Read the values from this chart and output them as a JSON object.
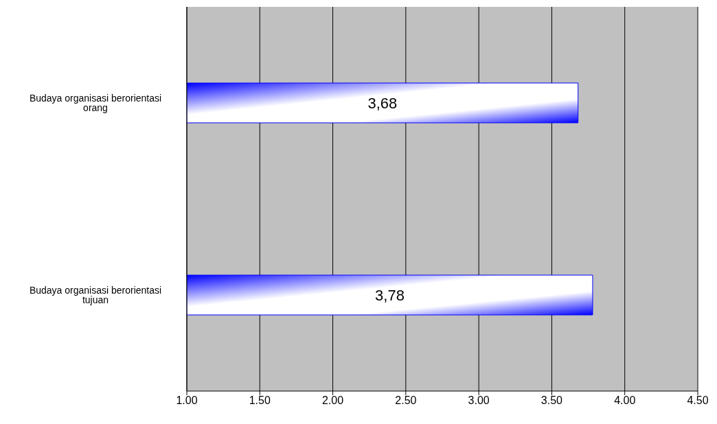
{
  "chart_data": {
    "type": "bar",
    "orientation": "horizontal",
    "categories": [
      "Budaya organisasi berorientasi orang",
      "Budaya organisasi berorientasi tujuan"
    ],
    "values": [
      3.68,
      3.78
    ],
    "value_labels": [
      "3,68",
      "3,78"
    ],
    "color": "#0000ff",
    "xlim": [
      1,
      4.5
    ],
    "xticks": [
      {
        "value": 1,
        "label": "1.00"
      },
      {
        "value": 1.5,
        "label": "1.50"
      },
      {
        "value": 2,
        "label": "2.00"
      },
      {
        "value": 2.5,
        "label": "2.50"
      },
      {
        "value": 3,
        "label": "3.00"
      },
      {
        "value": 3.5,
        "label": "3.50"
      },
      {
        "value": 4,
        "label": "4.00"
      },
      {
        "value": 4.5,
        "label": "4.50"
      }
    ],
    "grid": "x"
  }
}
